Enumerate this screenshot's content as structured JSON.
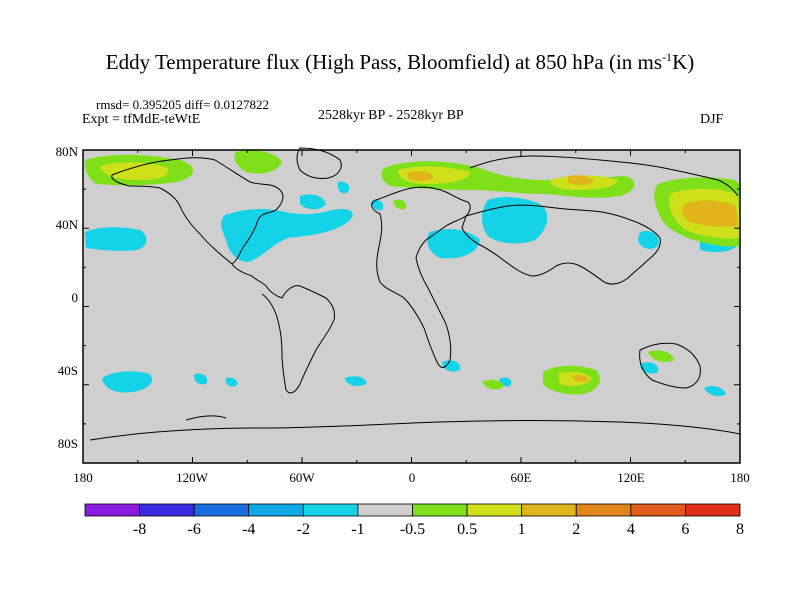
{
  "title": {
    "main": "Eddy Temperature flux (High Pass, Bloomfield) at 850 hPa (in ms",
    "sup": "-1",
    "end": "K)"
  },
  "header": {
    "stats": "rmsd= 0.395205 diff= 0.0127822",
    "expt": "Expt = tfMdE-teWtE",
    "period": "2528kyr BP - 2528kyr BP",
    "season": "DJF"
  },
  "axes": {
    "lat_labels": [
      "80N",
      "40N",
      "0",
      "40S",
      "80S"
    ],
    "lon_labels": [
      "180",
      "120W",
      "60W",
      "0",
      "60E",
      "120E",
      "180"
    ]
  },
  "colorbar": {
    "colors": [
      "#8a1de0",
      "#3a2ee0",
      "#1a6ee0",
      "#10a8e6",
      "#14d2e8",
      "#cfcfcf",
      "#7fe01a",
      "#cfe01a",
      "#e0b41a",
      "#e0861a",
      "#e05a1a",
      "#e0301a"
    ],
    "labels": [
      "-8",
      "-6",
      "-4",
      "-2",
      "-1",
      "-0.5",
      "0.5",
      "1",
      "2",
      "4",
      "6",
      "8"
    ]
  },
  "colors": {
    "land_background": "#cfcfcf",
    "coast": "#000000"
  }
}
